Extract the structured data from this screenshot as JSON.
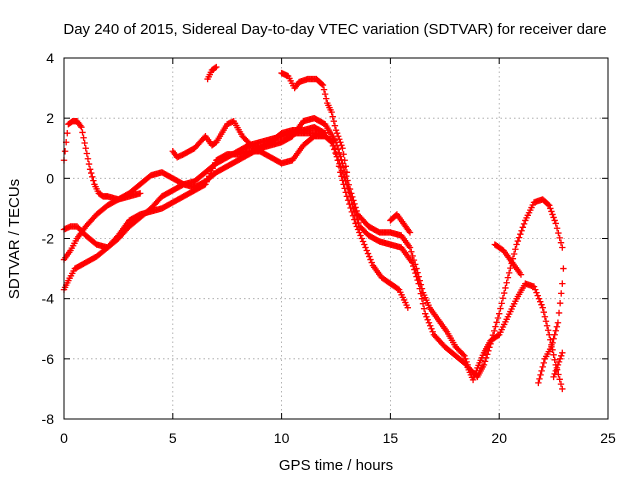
{
  "chart_data": {
    "type": "scatter",
    "title": "Day 240 of 2015, Sidereal Day-to-day VTEC variation (SDTVAR) for receiver dare",
    "xlabel": "GPS time / hours",
    "ylabel": "SDTVAR / TECUs",
    "xlim": [
      0,
      25
    ],
    "ylim": [
      -8,
      4
    ],
    "xticks": [
      0,
      5,
      10,
      15,
      20,
      25
    ],
    "yticks": [
      -8,
      -6,
      -4,
      -2,
      0,
      2,
      4
    ],
    "xtick_labels": [
      "0",
      "5",
      "10",
      "15",
      "20",
      "25"
    ],
    "ytick_labels": [
      "-8",
      "-6",
      "-4",
      "-2",
      "0",
      "2",
      "4"
    ],
    "grid": true,
    "marker": "plus",
    "color": "#ff0000",
    "series": [
      {
        "points": [
          [
            0.0,
            -3.7
          ],
          [
            0.2,
            -3.4
          ],
          [
            0.5,
            -3.0
          ],
          [
            1.0,
            -2.8
          ],
          [
            1.5,
            -2.6
          ],
          [
            2.0,
            -2.3
          ],
          [
            2.5,
            -2.0
          ],
          [
            3.0,
            -1.6
          ],
          [
            3.5,
            -1.3
          ],
          [
            4.0,
            -1.0
          ],
          [
            4.5,
            -0.6
          ],
          [
            5.0,
            -0.4
          ],
          [
            5.5,
            -0.2
          ],
          [
            6.0,
            -0.1
          ],
          [
            6.5,
            0.2
          ],
          [
            7.0,
            0.5
          ],
          [
            7.5,
            0.7
          ],
          [
            8.0,
            0.9
          ],
          [
            8.5,
            1.1
          ],
          [
            9.0,
            1.2
          ],
          [
            9.5,
            1.3
          ],
          [
            10.0,
            1.4
          ],
          [
            10.5,
            1.5
          ],
          [
            11.0,
            1.5
          ],
          [
            11.5,
            1.5
          ],
          [
            12.0,
            1.4
          ],
          [
            12.3,
            1.2
          ],
          [
            12.6,
            0.6
          ],
          [
            13.0,
            -0.2
          ],
          [
            13.3,
            -1.0
          ],
          [
            13.6,
            -1.6
          ],
          [
            14.0,
            -1.9
          ],
          [
            14.5,
            -2.1
          ],
          [
            15.0,
            -2.2
          ],
          [
            15.5,
            -2.3
          ],
          [
            16.0,
            -2.8
          ],
          [
            16.3,
            -3.5
          ],
          [
            16.6,
            -4.5
          ],
          [
            17.0,
            -5.2
          ],
          [
            17.5,
            -5.6
          ],
          [
            18.0,
            -5.9
          ],
          [
            18.5,
            -6.2
          ],
          [
            18.8,
            -6.7
          ],
          [
            19.0,
            -6.3
          ],
          [
            19.3,
            -5.8
          ],
          [
            19.6,
            -5.4
          ],
          [
            20.0,
            -5.2
          ],
          [
            20.4,
            -4.6
          ],
          [
            20.8,
            -4.0
          ],
          [
            21.2,
            -3.5
          ],
          [
            21.6,
            -3.6
          ],
          [
            22.0,
            -4.3
          ],
          [
            22.3,
            -5.2
          ],
          [
            22.6,
            -6.2
          ],
          [
            22.9,
            -7.0
          ]
        ]
      },
      {
        "points": [
          [
            0.0,
            -2.7
          ],
          [
            0.3,
            -2.4
          ],
          [
            0.6,
            -2.0
          ],
          [
            1.0,
            -1.6
          ],
          [
            1.5,
            -1.2
          ],
          [
            2.0,
            -0.9
          ],
          [
            2.5,
            -0.7
          ],
          [
            3.0,
            -0.5
          ],
          [
            3.5,
            -0.2
          ],
          [
            4.0,
            0.1
          ],
          [
            4.5,
            0.2
          ],
          [
            5.0,
            0.0
          ],
          [
            5.5,
            -0.2
          ],
          [
            6.0,
            -0.3
          ],
          [
            6.5,
            -0.1
          ],
          [
            7.0,
            0.2
          ],
          [
            7.5,
            0.4
          ],
          [
            8.0,
            0.6
          ],
          [
            8.5,
            0.8
          ],
          [
            9.0,
            1.0
          ],
          [
            9.5,
            1.1
          ],
          [
            10.0,
            1.2
          ],
          [
            10.5,
            1.4
          ],
          [
            11.0,
            1.9
          ],
          [
            11.5,
            2.0
          ],
          [
            12.0,
            1.8
          ],
          [
            12.5,
            1.2
          ],
          [
            12.8,
            0.5
          ],
          [
            13.2,
            -0.5
          ],
          [
            13.5,
            -1.2
          ],
          [
            14.0,
            -1.6
          ],
          [
            14.5,
            -1.8
          ],
          [
            15.0,
            -1.8
          ],
          [
            15.5,
            -1.9
          ],
          [
            15.9,
            -2.3
          ],
          [
            16.2,
            -3.0
          ],
          [
            16.5,
            -3.8
          ],
          [
            16.8,
            -4.3
          ],
          [
            17.2,
            -4.7
          ],
          [
            17.6,
            -5.1
          ],
          [
            18.0,
            -5.6
          ],
          [
            18.4,
            -5.9
          ],
          [
            18.6,
            -6.3
          ],
          [
            19.0,
            -6.6
          ],
          [
            19.3,
            -6.2
          ],
          [
            19.6,
            -5.5
          ],
          [
            20.0,
            -4.5
          ],
          [
            20.4,
            -3.3
          ],
          [
            20.8,
            -2.2
          ],
          [
            21.2,
            -1.4
          ],
          [
            21.6,
            -0.8
          ],
          [
            22.0,
            -0.7
          ],
          [
            22.3,
            -0.9
          ],
          [
            22.6,
            -1.5
          ],
          [
            22.9,
            -2.3
          ]
        ]
      },
      {
        "points": [
          [
            0.0,
            -1.7
          ],
          [
            0.3,
            -1.6
          ],
          [
            0.6,
            -1.6
          ],
          [
            1.0,
            -1.9
          ],
          [
            1.5,
            -2.2
          ],
          [
            2.0,
            -2.3
          ],
          [
            2.5,
            -1.9
          ],
          [
            3.0,
            -1.4
          ],
          [
            3.5,
            -1.2
          ],
          [
            4.0,
            -1.1
          ],
          [
            4.5,
            -1.0
          ],
          [
            5.0,
            -0.8
          ],
          [
            5.5,
            -0.6
          ],
          [
            6.0,
            -0.4
          ],
          [
            6.5,
            -0.2
          ],
          [
            7.0,
            0.6
          ],
          [
            7.5,
            0.8
          ],
          [
            8.0,
            0.8
          ],
          [
            8.5,
            0.9
          ],
          [
            9.0,
            0.9
          ],
          [
            9.5,
            0.7
          ],
          [
            10.0,
            0.5
          ],
          [
            10.5,
            0.6
          ],
          [
            11.0,
            1.1
          ],
          [
            11.5,
            1.4
          ],
          [
            12.0,
            1.4
          ],
          [
            12.4,
            1.2
          ],
          [
            12.7,
            0.2
          ],
          [
            13.0,
            -0.6
          ],
          [
            13.4,
            -1.5
          ],
          [
            13.8,
            -2.2
          ],
          [
            14.2,
            -2.9
          ],
          [
            14.6,
            -3.3
          ],
          [
            15.0,
            -3.5
          ],
          [
            15.4,
            -3.7
          ],
          [
            15.8,
            -4.3
          ]
        ]
      },
      {
        "points": [
          [
            0.0,
            0.6
          ],
          [
            0.1,
            1.2
          ],
          [
            0.2,
            1.8
          ],
          [
            0.4,
            1.9
          ],
          [
            0.6,
            1.9
          ],
          [
            0.8,
            1.7
          ],
          [
            1.0,
            1.0
          ],
          [
            1.2,
            0.3
          ],
          [
            1.4,
            -0.2
          ],
          [
            1.6,
            -0.5
          ],
          [
            1.8,
            -0.6
          ],
          [
            2.0,
            -0.6
          ],
          [
            2.5,
            -0.7
          ],
          [
            3.0,
            -0.6
          ],
          [
            3.5,
            -0.5
          ]
        ]
      },
      {
        "points": [
          [
            5.0,
            0.9
          ],
          [
            5.2,
            0.7
          ],
          [
            5.5,
            0.8
          ],
          [
            6.0,
            1.0
          ],
          [
            6.5,
            1.4
          ],
          [
            6.8,
            1.1
          ],
          [
            7.0,
            1.2
          ],
          [
            7.5,
            1.8
          ],
          [
            7.8,
            1.9
          ],
          [
            8.2,
            1.4
          ],
          [
            8.6,
            1.1
          ],
          [
            9.0,
            1.0
          ],
          [
            9.5,
            1.2
          ],
          [
            10.0,
            1.5
          ],
          [
            10.5,
            1.6
          ],
          [
            11.0,
            1.6
          ],
          [
            11.5,
            1.7
          ],
          [
            12.0,
            1.5
          ]
        ]
      },
      {
        "points": [
          [
            10.0,
            3.5
          ],
          [
            10.3,
            3.4
          ],
          [
            10.6,
            3.0
          ],
          [
            10.8,
            3.2
          ],
          [
            11.2,
            3.3
          ],
          [
            11.6,
            3.3
          ],
          [
            11.9,
            3.1
          ],
          [
            12.1,
            2.5
          ],
          [
            12.3,
            2.2
          ],
          [
            12.5,
            1.6
          ],
          [
            12.8,
            1.0
          ],
          [
            13.0,
            0.2
          ]
        ]
      },
      {
        "points": [
          [
            6.6,
            3.3
          ],
          [
            6.8,
            3.6
          ],
          [
            7.0,
            3.7
          ]
        ]
      },
      {
        "points": [
          [
            15.0,
            -1.4
          ],
          [
            15.3,
            -1.2
          ],
          [
            15.6,
            -1.5
          ],
          [
            15.9,
            -1.8
          ]
        ]
      },
      {
        "points": [
          [
            19.8,
            -2.2
          ],
          [
            20.2,
            -2.4
          ],
          [
            20.6,
            -2.8
          ],
          [
            21.0,
            -3.2
          ]
        ]
      },
      {
        "points": [
          [
            21.8,
            -6.8
          ],
          [
            22.1,
            -6.0
          ],
          [
            22.4,
            -5.6
          ],
          [
            22.7,
            -4.8
          ],
          [
            22.9,
            -3.5
          ],
          [
            22.95,
            -3.0
          ]
        ]
      },
      {
        "points": [
          [
            22.5,
            -6.6
          ],
          [
            22.7,
            -6.2
          ],
          [
            22.9,
            -5.8
          ]
        ]
      }
    ]
  }
}
